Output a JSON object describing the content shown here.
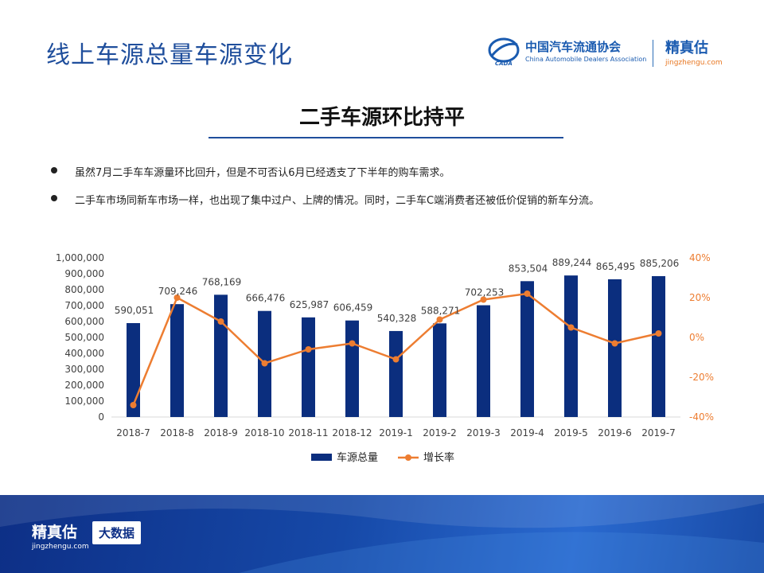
{
  "header": {
    "title": "线上车源总量车源变化"
  },
  "logos": {
    "caada_cn": "中国汽车流通协会",
    "caada_en": "China Automobile Dealers Association",
    "caada_mark_text": "CADA",
    "jzg_cn": "精真估",
    "jzg_url": "jingzhengu.com"
  },
  "subtitle": "二手车源环比持平",
  "bullets": [
    "虽然7月二手车车源量环比回升，但是不可否认6月已经透支了下半年的购车需求。",
    "二手车市场同新车市场一样，也出现了集中过户、上牌的情况。同时，二手车C端消费者还被低价促销的新车分流。"
  ],
  "chart_data": {
    "type": "bar",
    "categories": [
      "2018-7",
      "2018-8",
      "2018-9",
      "2018-10",
      "2018-11",
      "2018-12",
      "2019-1",
      "2019-2",
      "2019-3",
      "2019-4",
      "2019-5",
      "2019-6",
      "2019-7"
    ],
    "series": [
      {
        "name": "车源总量",
        "type": "bar",
        "axis": "left",
        "color": "#0b2e7e",
        "values": [
          590051,
          709246,
          768169,
          666476,
          625987,
          606459,
          540328,
          588271,
          702253,
          853504,
          889244,
          865495,
          885206
        ],
        "labels": [
          "590,051",
          "709,246",
          "768,169",
          "666,476",
          "625,987",
          "606,459",
          "540,328",
          "588,271",
          "702,253",
          "853,504",
          "889,244",
          "865,495",
          "885,206"
        ]
      },
      {
        "name": "增长率",
        "type": "line",
        "axis": "right",
        "color": "#ed7d31",
        "values": [
          -0.34,
          0.2,
          0.08,
          -0.13,
          -0.06,
          -0.03,
          -0.11,
          0.09,
          0.19,
          0.22,
          0.05,
          -0.03,
          0.02
        ]
      }
    ],
    "left_axis": {
      "min": 0,
      "max": 1000000,
      "ticks": [
        "0",
        "100,000",
        "200,000",
        "300,000",
        "400,000",
        "500,000",
        "600,000",
        "700,000",
        "800,000",
        "900,000",
        "1,000,000"
      ]
    },
    "right_axis": {
      "min": -0.4,
      "max": 0.4,
      "ticks": [
        "-40%",
        "-20%",
        "0%",
        "20%",
        "40%"
      ],
      "color": "#ed7d31"
    },
    "legend_position": "bottom",
    "grid": false
  },
  "footer": {
    "brand_cn": "精真估",
    "brand_url": "jingzhengu.com",
    "tag": "大数据"
  }
}
